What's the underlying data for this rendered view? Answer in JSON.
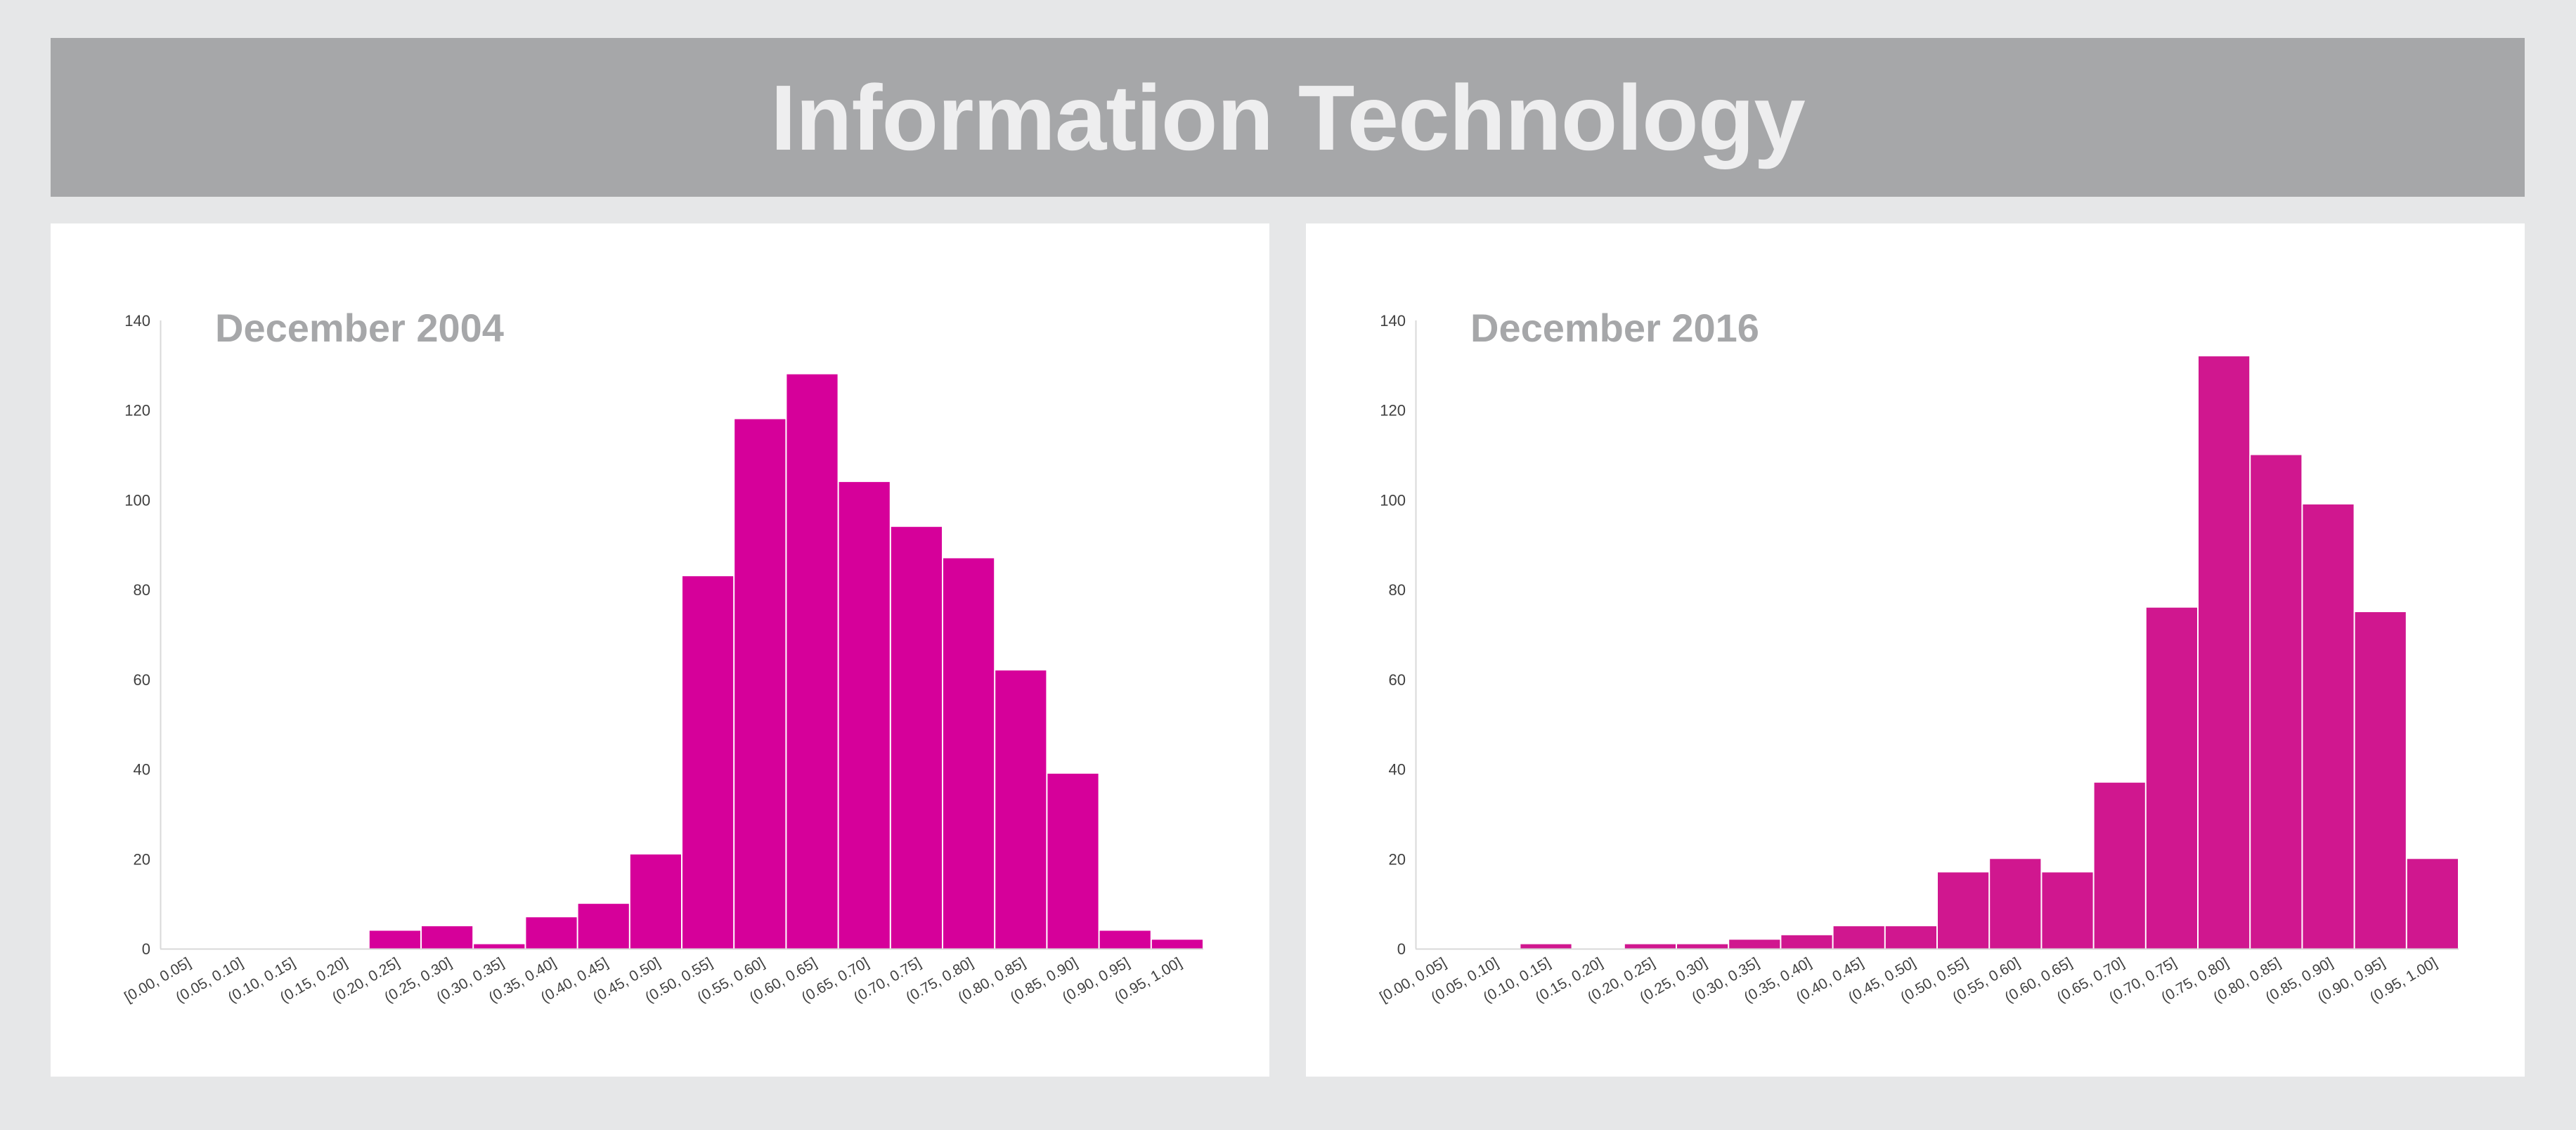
{
  "header": {
    "title": "Information Technology"
  },
  "colors": {
    "background": "#e6e7e8",
    "header_bg": "#a6a7a9",
    "bar_left": "#d6009a",
    "bar_right": "#d0178f"
  },
  "chart_data": [
    {
      "type": "bar",
      "title": "December 2004",
      "xlabel": "",
      "ylabel": "",
      "ylim": [
        0,
        140
      ],
      "yticks": [
        0,
        20,
        40,
        60,
        80,
        100,
        120,
        140
      ],
      "grid": false,
      "categories": [
        "[0.00, 0.05]",
        "(0.05, 0.10]",
        "(0.10, 0.15]",
        "(0.15, 0.20]",
        "(0.20, 0.25]",
        "(0.25, 0.30]",
        "(0.30, 0.35]",
        "(0.35, 0.40]",
        "(0.40, 0.45]",
        "(0.45, 0.50]",
        "(0.50, 0.55]",
        "(0.55, 0.60]",
        "(0.60, 0.65]",
        "(0.65, 0.70]",
        "(0.70, 0.75]",
        "(0.75, 0.80]",
        "(0.80, 0.85]",
        "(0.85, 0.90]",
        "(0.90, 0.95]",
        "(0.95, 1.00]"
      ],
      "values": [
        0,
        0,
        0,
        0,
        4,
        5,
        1,
        7,
        10,
        21,
        83,
        118,
        128,
        104,
        94,
        87,
        62,
        39,
        4,
        2
      ]
    },
    {
      "type": "bar",
      "title": "December 2016",
      "xlabel": "",
      "ylabel": "",
      "ylim": [
        0,
        140
      ],
      "yticks": [
        0,
        20,
        40,
        60,
        80,
        100,
        120,
        140
      ],
      "grid": false,
      "categories": [
        "[0.00, 0.05]",
        "(0.05, 0.10]",
        "(0.10, 0.15]",
        "(0.15, 0.20]",
        "(0.20, 0.25]",
        "(0.25, 0.30]",
        "(0.30, 0.35]",
        "(0.35, 0.40]",
        "(0.40, 0.45]",
        "(0.45, 0.50]",
        "(0.50, 0.55]",
        "(0.55, 0.60]",
        "(0.60, 0.65]",
        "(0.65, 0.70]",
        "(0.70, 0.75]",
        "(0.75, 0.80]",
        "(0.80, 0.85]",
        "(0.85, 0.90]",
        "(0.90, 0.95]",
        "(0.95, 1.00]"
      ],
      "values": [
        0,
        0,
        1,
        0,
        1,
        1,
        2,
        3,
        5,
        5,
        17,
        20,
        17,
        37,
        76,
        132,
        110,
        99,
        75,
        20
      ]
    }
  ]
}
